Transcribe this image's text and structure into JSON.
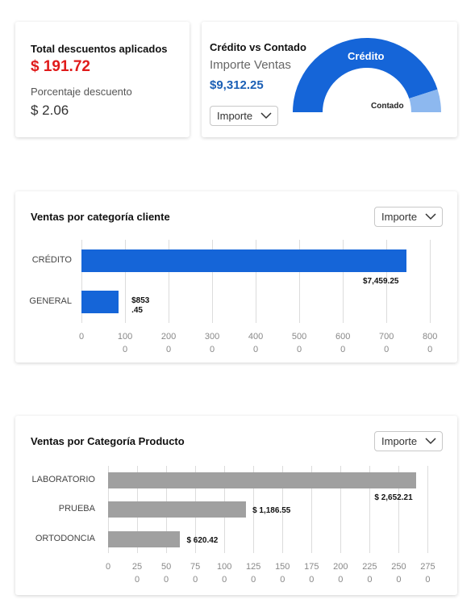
{
  "discounts_card": {
    "title": "Total descuentos aplicados",
    "total_value": "$ 191.72",
    "percent_label": "Porcentaje descuento",
    "percent_value": "$ 2.06"
  },
  "credit_card": {
    "title": "Crédito vs Contado",
    "subtitle": "Importe Ventas",
    "value": "$9,312.25",
    "select_value": "Importe",
    "gauge_credit_label": "Crédito",
    "gauge_cash_label": "Contado",
    "gauge_credit_fraction": 0.9,
    "colors": {
      "credit": "#1565d8",
      "cash": "#8db8ef"
    }
  },
  "customer_chart_card": {
    "title": "Ventas por categoría cliente",
    "select_value": "Importe"
  },
  "product_chart_card": {
    "title": "Ventas por Categoría Producto",
    "select_value": "Importe"
  },
  "chart_data": [
    {
      "type": "bar",
      "orientation": "horizontal",
      "title": "Ventas por categoría cliente",
      "categories": [
        "CRÉDITO",
        "GENERAL"
      ],
      "values": [
        7459.25,
        853.45
      ],
      "value_labels": [
        "$7,459.25",
        "$853.45"
      ],
      "tick_labels": [
        "0",
        "1000",
        "2000",
        "3000",
        "4000",
        "5000",
        "6000",
        "7000",
        "8000"
      ],
      "xlim": [
        0,
        8200
      ],
      "color": "#1565d8",
      "grid": true
    },
    {
      "type": "bar",
      "orientation": "horizontal",
      "title": "Ventas por Categoría Producto",
      "categories": [
        "LABORATORIO",
        "PRUEBA",
        "ORTODONCIA"
      ],
      "values": [
        2652.21,
        1186.55,
        620.42
      ],
      "value_labels": [
        "$ 2,652.21",
        "$ 1,186.55",
        "$ 620.42"
      ],
      "tick_labels": [
        "0",
        "250",
        "500",
        "750",
        "1000",
        "1250",
        "1500",
        "1750",
        "2000",
        "2250",
        "2500",
        "2750"
      ],
      "xlim": [
        0,
        2830
      ],
      "color": "#a0a0a0",
      "grid": true
    }
  ]
}
